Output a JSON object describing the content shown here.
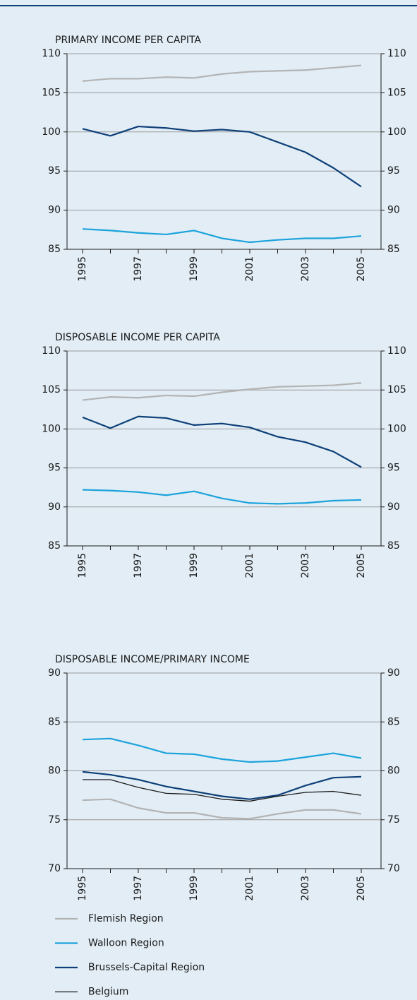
{
  "chart_data": [
    {
      "type": "line",
      "title": "PRIMARY INCOME PER CAPITA",
      "categories": [
        "1995",
        null,
        "1997",
        null,
        "1999",
        null,
        "2001",
        null,
        "2003",
        null,
        "2005"
      ],
      "series": [
        {
          "color": "#b3b3b3",
          "values": [
            106.5,
            106.8,
            106.8,
            107.0,
            106.9,
            107.4,
            107.7,
            107.8,
            107.9,
            108.2,
            108.5
          ]
        },
        {
          "color": "#1ba3dc",
          "values": [
            87.6,
            87.4,
            87.1,
            86.9,
            87.4,
            86.4,
            85.9,
            86.2,
            86.4,
            86.4,
            86.7
          ]
        },
        {
          "color": "#0d3f78",
          "values": [
            100.4,
            99.5,
            100.7,
            100.5,
            100.1,
            100.3,
            100.0,
            98.7,
            97.4,
            95.4,
            93.0
          ]
        }
      ],
      "ylim": [
        85,
        110
      ],
      "yticks": [
        85,
        90,
        95,
        100,
        105,
        110
      ],
      "grid": true
    },
    {
      "type": "line",
      "title": "DISPOSABLE INCOME PER CAPITA",
      "categories": [
        "1995",
        null,
        "1997",
        null,
        "1999",
        null,
        "2001",
        null,
        "2003",
        null,
        "2005"
      ],
      "series": [
        {
          "color": "#b3b3b3",
          "values": [
            103.7,
            104.1,
            104.0,
            104.3,
            104.2,
            104.7,
            105.1,
            105.4,
            105.5,
            105.6,
            105.9
          ]
        },
        {
          "color": "#1ba3dc",
          "values": [
            92.2,
            92.1,
            91.9,
            91.5,
            92.0,
            91.1,
            90.5,
            90.4,
            90.5,
            90.8,
            90.9
          ]
        },
        {
          "color": "#0d3f78",
          "values": [
            101.5,
            100.1,
            101.6,
            101.4,
            100.5,
            100.7,
            100.2,
            99.0,
            98.3,
            97.1,
            95.1
          ]
        }
      ],
      "ylim": [
        85,
        110
      ],
      "yticks": [
        85,
        90,
        95,
        100,
        105,
        110
      ],
      "grid": true
    },
    {
      "type": "line",
      "title": "DISPOSABLE INCOME/PRIMARY INCOME",
      "categories": [
        "1995",
        null,
        "1997",
        null,
        "1999",
        null,
        "2001",
        null,
        "2003",
        null,
        "2005"
      ],
      "series": [
        {
          "name": "Flemish Region",
          "color": "#b3b3b3",
          "values": [
            77.0,
            77.1,
            76.2,
            75.7,
            75.7,
            75.2,
            75.1,
            75.6,
            76.0,
            76.0,
            75.6
          ]
        },
        {
          "name": "Walloon Region",
          "color": "#1ba3dc",
          "values": [
            83.2,
            83.3,
            82.6,
            81.8,
            81.7,
            81.2,
            80.9,
            81.0,
            81.4,
            81.8,
            81.3
          ]
        },
        {
          "name": "Brussels-Capital Region",
          "color": "#0d3f78",
          "values": [
            79.9,
            79.6,
            79.1,
            78.4,
            77.9,
            77.4,
            77.1,
            77.5,
            78.5,
            79.3,
            79.4
          ]
        },
        {
          "name": "Belgium",
          "color": "#1a1a1a",
          "values": [
            79.1,
            79.1,
            78.3,
            77.7,
            77.6,
            77.1,
            76.9,
            77.4,
            77.8,
            77.9,
            77.5
          ]
        }
      ],
      "ylim": [
        70,
        90
      ],
      "yticks": [
        70,
        75,
        80,
        85,
        90
      ],
      "grid": true
    }
  ]
}
